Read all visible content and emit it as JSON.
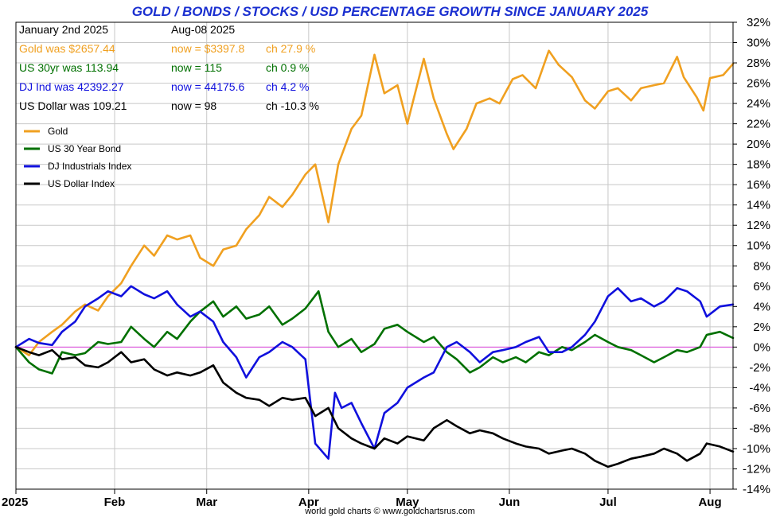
{
  "chart_data": {
    "type": "line",
    "title": "GOLD / BONDS / STOCKS / USD PERCENTAGE GROWTH SINCE JANUARY 2025",
    "credit": "world gold charts © www.goldchartsrus.com",
    "info_rows": [
      {
        "was": "January 2nd 2025",
        "now": "Aug-08  2025",
        "ch": "",
        "color": "#000000"
      },
      {
        "was": "Gold was $2657.44",
        "now": "now = $3397.8",
        "ch": "ch 27.9 %",
        "color": "#f0a020"
      },
      {
        "was": "US 30yr was 113.94",
        "now": "now = 115",
        "ch": "ch 0.9 %",
        "color": "#007000"
      },
      {
        "was": "DJ Ind was 42392.27",
        "now": "now = 44175.6",
        "ch": "ch 4.2 %",
        "color": "#1010dd"
      },
      {
        "was": "US Dollar was 109.21",
        "now": "now = 98",
        "ch": "ch -10.3 %",
        "color": "#000000"
      }
    ],
    "ylim": [
      -14,
      32
    ],
    "y_ticks": [
      "32%",
      "30%",
      "28%",
      "26%",
      "24%",
      "22%",
      "20%",
      "18%",
      "16%",
      "14%",
      "12%",
      "10%",
      "8%",
      "6%",
      "4%",
      "2%",
      "0%",
      "-2%",
      "-4%",
      "-6%",
      "-8%",
      "-10%",
      "-12%",
      "-14%"
    ],
    "xlim": [
      "2025-01-02",
      "2025-08-08"
    ],
    "x_ticks": [
      {
        "label": "2025",
        "date": "2025-01-02"
      },
      {
        "label": "Feb",
        "date": "2025-02-01"
      },
      {
        "label": "Mar",
        "date": "2025-03-01"
      },
      {
        "label": "Apr",
        "date": "2025-04-01"
      },
      {
        "label": "May",
        "date": "2025-05-01"
      },
      {
        "label": "Jun",
        "date": "2025-06-01"
      },
      {
        "label": "Jul",
        "date": "2025-07-01"
      },
      {
        "label": "Aug",
        "date": "2025-08-01"
      }
    ],
    "grid": true,
    "legend_position": "top-left",
    "zero_line_color": "#dd44dd",
    "series": [
      {
        "name": "Gold",
        "color": "#f0a020",
        "points": [
          [
            "2025-01-02",
            0
          ],
          [
            "2025-01-06",
            -0.8
          ],
          [
            "2025-01-09",
            0.5
          ],
          [
            "2025-01-13",
            1.5
          ],
          [
            "2025-01-16",
            2.2
          ],
          [
            "2025-01-20",
            3.5
          ],
          [
            "2025-01-23",
            4.2
          ],
          [
            "2025-01-27",
            3.6
          ],
          [
            "2025-01-30",
            5.0
          ],
          [
            "2025-02-03",
            6.3
          ],
          [
            "2025-02-06",
            8.0
          ],
          [
            "2025-02-10",
            10.0
          ],
          [
            "2025-02-13",
            9.0
          ],
          [
            "2025-02-17",
            11.0
          ],
          [
            "2025-02-20",
            10.6
          ],
          [
            "2025-02-24",
            11.0
          ],
          [
            "2025-02-27",
            8.8
          ],
          [
            "2025-03-03",
            8.0
          ],
          [
            "2025-03-06",
            9.6
          ],
          [
            "2025-03-10",
            10.0
          ],
          [
            "2025-03-13",
            11.6
          ],
          [
            "2025-03-17",
            13.0
          ],
          [
            "2025-03-20",
            14.8
          ],
          [
            "2025-03-24",
            13.8
          ],
          [
            "2025-03-27",
            15.0
          ],
          [
            "2025-03-31",
            17.0
          ],
          [
            "2025-04-03",
            18.0
          ],
          [
            "2025-04-07",
            12.3
          ],
          [
            "2025-04-10",
            18.0
          ],
          [
            "2025-04-14",
            21.5
          ],
          [
            "2025-04-17",
            22.8
          ],
          [
            "2025-04-21",
            28.8
          ],
          [
            "2025-04-24",
            25.0
          ],
          [
            "2025-04-28",
            25.8
          ],
          [
            "2025-05-01",
            22.0
          ],
          [
            "2025-05-06",
            28.4
          ],
          [
            "2025-05-09",
            24.5
          ],
          [
            "2025-05-13",
            21.0
          ],
          [
            "2025-05-15",
            19.5
          ],
          [
            "2025-05-19",
            21.5
          ],
          [
            "2025-05-22",
            24.0
          ],
          [
            "2025-05-26",
            24.5
          ],
          [
            "2025-05-29",
            24.0
          ],
          [
            "2025-06-02",
            26.4
          ],
          [
            "2025-06-05",
            26.8
          ],
          [
            "2025-06-09",
            25.5
          ],
          [
            "2025-06-13",
            29.2
          ],
          [
            "2025-06-16",
            27.8
          ],
          [
            "2025-06-20",
            26.6
          ],
          [
            "2025-06-24",
            24.3
          ],
          [
            "2025-06-27",
            23.5
          ],
          [
            "2025-07-01",
            25.2
          ],
          [
            "2025-07-04",
            25.5
          ],
          [
            "2025-07-08",
            24.3
          ],
          [
            "2025-07-11",
            25.5
          ],
          [
            "2025-07-15",
            25.8
          ],
          [
            "2025-07-18",
            26.0
          ],
          [
            "2025-07-22",
            28.6
          ],
          [
            "2025-07-24",
            26.6
          ],
          [
            "2025-07-28",
            24.6
          ],
          [
            "2025-07-30",
            23.3
          ],
          [
            "2025-08-01",
            26.5
          ],
          [
            "2025-08-05",
            26.8
          ],
          [
            "2025-08-08",
            27.9
          ]
        ]
      },
      {
        "name": "US 30 Year Bond",
        "color": "#007000",
        "points": [
          [
            "2025-01-02",
            0
          ],
          [
            "2025-01-06",
            -1.5
          ],
          [
            "2025-01-09",
            -2.2
          ],
          [
            "2025-01-13",
            -2.6
          ],
          [
            "2025-01-16",
            -0.5
          ],
          [
            "2025-01-20",
            -0.8
          ],
          [
            "2025-01-23",
            -0.6
          ],
          [
            "2025-01-27",
            0.5
          ],
          [
            "2025-01-30",
            0.3
          ],
          [
            "2025-02-03",
            0.5
          ],
          [
            "2025-02-06",
            2.0
          ],
          [
            "2025-02-10",
            0.8
          ],
          [
            "2025-02-13",
            0
          ],
          [
            "2025-02-17",
            1.5
          ],
          [
            "2025-02-20",
            0.8
          ],
          [
            "2025-02-24",
            2.5
          ],
          [
            "2025-02-27",
            3.5
          ],
          [
            "2025-03-03",
            4.5
          ],
          [
            "2025-03-06",
            3.0
          ],
          [
            "2025-03-10",
            4.0
          ],
          [
            "2025-03-13",
            2.8
          ],
          [
            "2025-03-17",
            3.2
          ],
          [
            "2025-03-20",
            4.0
          ],
          [
            "2025-03-24",
            2.2
          ],
          [
            "2025-03-27",
            2.8
          ],
          [
            "2025-03-31",
            3.8
          ],
          [
            "2025-04-04",
            5.5
          ],
          [
            "2025-04-07",
            1.5
          ],
          [
            "2025-04-10",
            0
          ],
          [
            "2025-04-14",
            0.8
          ],
          [
            "2025-04-17",
            -0.5
          ],
          [
            "2025-04-21",
            0.3
          ],
          [
            "2025-04-24",
            1.8
          ],
          [
            "2025-04-28",
            2.2
          ],
          [
            "2025-05-01",
            1.5
          ],
          [
            "2025-05-06",
            0.5
          ],
          [
            "2025-05-09",
            1.0
          ],
          [
            "2025-05-13",
            -0.5
          ],
          [
            "2025-05-16",
            -1.2
          ],
          [
            "2025-05-20",
            -2.5
          ],
          [
            "2025-05-23",
            -2.0
          ],
          [
            "2025-05-27",
            -1.0
          ],
          [
            "2025-05-30",
            -1.5
          ],
          [
            "2025-06-03",
            -1.0
          ],
          [
            "2025-06-06",
            -1.5
          ],
          [
            "2025-06-10",
            -0.5
          ],
          [
            "2025-06-13",
            -0.8
          ],
          [
            "2025-06-17",
            0
          ],
          [
            "2025-06-20",
            -0.3
          ],
          [
            "2025-06-24",
            0.5
          ],
          [
            "2025-06-27",
            1.2
          ],
          [
            "2025-07-01",
            0.5
          ],
          [
            "2025-07-04",
            0
          ],
          [
            "2025-07-08",
            -0.3
          ],
          [
            "2025-07-11",
            -0.8
          ],
          [
            "2025-07-15",
            -1.5
          ],
          [
            "2025-07-18",
            -1.0
          ],
          [
            "2025-07-22",
            -0.3
          ],
          [
            "2025-07-25",
            -0.5
          ],
          [
            "2025-07-29",
            0
          ],
          [
            "2025-07-31",
            1.2
          ],
          [
            "2025-08-04",
            1.5
          ],
          [
            "2025-08-08",
            0.9
          ]
        ]
      },
      {
        "name": "DJ Industrials Index",
        "color": "#1010dd",
        "points": [
          [
            "2025-01-02",
            0
          ],
          [
            "2025-01-06",
            0.8
          ],
          [
            "2025-01-09",
            0.4
          ],
          [
            "2025-01-13",
            0.2
          ],
          [
            "2025-01-16",
            1.5
          ],
          [
            "2025-01-20",
            2.5
          ],
          [
            "2025-01-23",
            4.0
          ],
          [
            "2025-01-27",
            4.8
          ],
          [
            "2025-01-30",
            5.5
          ],
          [
            "2025-02-03",
            5.0
          ],
          [
            "2025-02-06",
            6.0
          ],
          [
            "2025-02-10",
            5.2
          ],
          [
            "2025-02-13",
            4.8
          ],
          [
            "2025-02-17",
            5.5
          ],
          [
            "2025-02-20",
            4.2
          ],
          [
            "2025-02-24",
            3.0
          ],
          [
            "2025-02-27",
            3.5
          ],
          [
            "2025-03-03",
            2.5
          ],
          [
            "2025-03-06",
            0.5
          ],
          [
            "2025-03-10",
            -1.0
          ],
          [
            "2025-03-13",
            -3.0
          ],
          [
            "2025-03-17",
            -1.0
          ],
          [
            "2025-03-20",
            -0.5
          ],
          [
            "2025-03-24",
            0.5
          ],
          [
            "2025-03-27",
            0
          ],
          [
            "2025-03-31",
            -1.2
          ],
          [
            "2025-04-03",
            -9.5
          ],
          [
            "2025-04-07",
            -11.0
          ],
          [
            "2025-04-09",
            -4.5
          ],
          [
            "2025-04-11",
            -6.0
          ],
          [
            "2025-04-14",
            -5.5
          ],
          [
            "2025-04-17",
            -7.5
          ],
          [
            "2025-04-21",
            -10.0
          ],
          [
            "2025-04-24",
            -6.5
          ],
          [
            "2025-04-28",
            -5.5
          ],
          [
            "2025-05-01",
            -4.0
          ],
          [
            "2025-05-06",
            -3.0
          ],
          [
            "2025-05-09",
            -2.5
          ],
          [
            "2025-05-13",
            0
          ],
          [
            "2025-05-16",
            0.5
          ],
          [
            "2025-05-20",
            -0.5
          ],
          [
            "2025-05-23",
            -1.5
          ],
          [
            "2025-05-27",
            -0.5
          ],
          [
            "2025-05-30",
            -0.3
          ],
          [
            "2025-06-03",
            0
          ],
          [
            "2025-06-06",
            0.5
          ],
          [
            "2025-06-10",
            1.0
          ],
          [
            "2025-06-13",
            -0.5
          ],
          [
            "2025-06-17",
            -0.5
          ],
          [
            "2025-06-20",
            0
          ],
          [
            "2025-06-24",
            1.2
          ],
          [
            "2025-06-27",
            2.5
          ],
          [
            "2025-07-01",
            5.0
          ],
          [
            "2025-07-04",
            5.8
          ],
          [
            "2025-07-08",
            4.5
          ],
          [
            "2025-07-11",
            4.8
          ],
          [
            "2025-07-15",
            4.0
          ],
          [
            "2025-07-18",
            4.5
          ],
          [
            "2025-07-22",
            5.8
          ],
          [
            "2025-07-25",
            5.5
          ],
          [
            "2025-07-29",
            4.5
          ],
          [
            "2025-07-31",
            3.0
          ],
          [
            "2025-08-04",
            4.0
          ],
          [
            "2025-08-08",
            4.2
          ]
        ]
      },
      {
        "name": "US Dollar Index",
        "color": "#000000",
        "points": [
          [
            "2025-01-02",
            0
          ],
          [
            "2025-01-06",
            -0.5
          ],
          [
            "2025-01-09",
            -0.8
          ],
          [
            "2025-01-13",
            -0.3
          ],
          [
            "2025-01-16",
            -1.2
          ],
          [
            "2025-01-20",
            -1.0
          ],
          [
            "2025-01-23",
            -1.8
          ],
          [
            "2025-01-27",
            -2.0
          ],
          [
            "2025-01-30",
            -1.5
          ],
          [
            "2025-02-03",
            -0.5
          ],
          [
            "2025-02-06",
            -1.5
          ],
          [
            "2025-02-10",
            -1.2
          ],
          [
            "2025-02-13",
            -2.2
          ],
          [
            "2025-02-17",
            -2.8
          ],
          [
            "2025-02-20",
            -2.5
          ],
          [
            "2025-02-24",
            -2.8
          ],
          [
            "2025-02-27",
            -2.5
          ],
          [
            "2025-03-03",
            -1.8
          ],
          [
            "2025-03-06",
            -3.5
          ],
          [
            "2025-03-10",
            -4.5
          ],
          [
            "2025-03-13",
            -5.0
          ],
          [
            "2025-03-17",
            -5.2
          ],
          [
            "2025-03-20",
            -5.8
          ],
          [
            "2025-03-24",
            -5.0
          ],
          [
            "2025-03-27",
            -5.2
          ],
          [
            "2025-03-31",
            -5.0
          ],
          [
            "2025-04-03",
            -6.8
          ],
          [
            "2025-04-07",
            -6.0
          ],
          [
            "2025-04-10",
            -8.0
          ],
          [
            "2025-04-14",
            -9.0
          ],
          [
            "2025-04-17",
            -9.5
          ],
          [
            "2025-04-21",
            -10.0
          ],
          [
            "2025-04-24",
            -9.0
          ],
          [
            "2025-04-28",
            -9.5
          ],
          [
            "2025-05-01",
            -8.8
          ],
          [
            "2025-05-06",
            -9.2
          ],
          [
            "2025-05-09",
            -8.0
          ],
          [
            "2025-05-13",
            -7.2
          ],
          [
            "2025-05-16",
            -7.8
          ],
          [
            "2025-05-20",
            -8.5
          ],
          [
            "2025-05-23",
            -8.2
          ],
          [
            "2025-05-27",
            -8.5
          ],
          [
            "2025-05-30",
            -9.0
          ],
          [
            "2025-06-03",
            -9.5
          ],
          [
            "2025-06-06",
            -9.8
          ],
          [
            "2025-06-10",
            -10.0
          ],
          [
            "2025-06-13",
            -10.5
          ],
          [
            "2025-06-17",
            -10.2
          ],
          [
            "2025-06-20",
            -10.0
          ],
          [
            "2025-06-24",
            -10.5
          ],
          [
            "2025-06-27",
            -11.2
          ],
          [
            "2025-07-01",
            -11.8
          ],
          [
            "2025-07-04",
            -11.5
          ],
          [
            "2025-07-08",
            -11.0
          ],
          [
            "2025-07-11",
            -10.8
          ],
          [
            "2025-07-15",
            -10.5
          ],
          [
            "2025-07-18",
            -10.0
          ],
          [
            "2025-07-22",
            -10.5
          ],
          [
            "2025-07-25",
            -11.2
          ],
          [
            "2025-07-29",
            -10.5
          ],
          [
            "2025-07-31",
            -9.5
          ],
          [
            "2025-08-04",
            -9.8
          ],
          [
            "2025-08-08",
            -10.3
          ]
        ]
      }
    ]
  }
}
